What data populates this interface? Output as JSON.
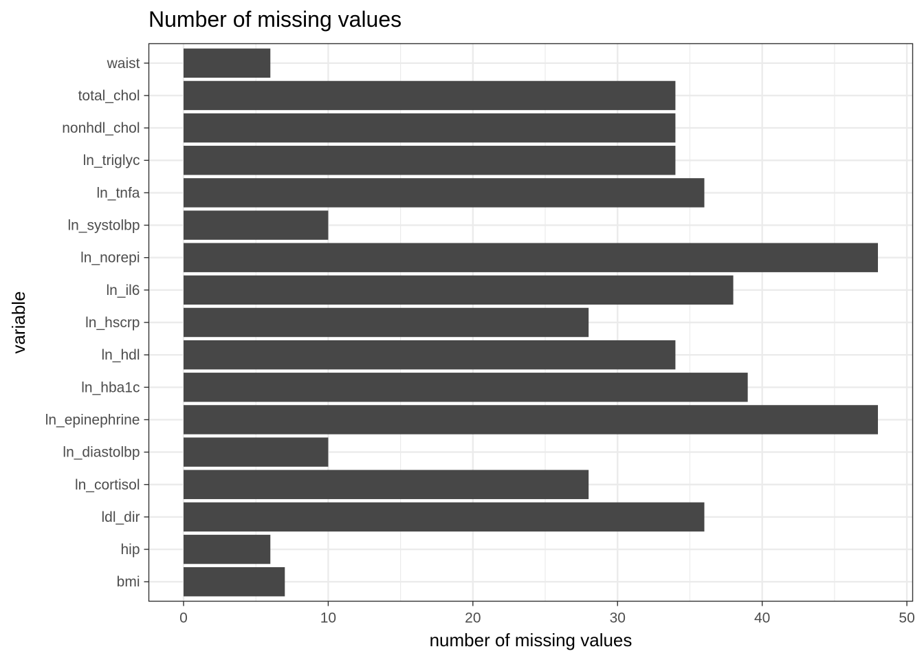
{
  "chart_data": {
    "type": "bar",
    "orientation": "horizontal",
    "title": "Number of missing values",
    "xlabel": "number of missing values",
    "ylabel": "variable",
    "categories": [
      "waist",
      "total_chol",
      "nonhdl_chol",
      "ln_triglyc",
      "ln_tnfa",
      "ln_systolbp",
      "ln_norepi",
      "ln_il6",
      "ln_hscrp",
      "ln_hdl",
      "ln_hba1c",
      "ln_epinephrine",
      "ln_diastolbp",
      "ln_cortisol",
      "ldl_dir",
      "hip",
      "bmi"
    ],
    "values": [
      6,
      34,
      34,
      34,
      36,
      10,
      48,
      38,
      28,
      34,
      39,
      48,
      10,
      28,
      36,
      6,
      7
    ],
    "xlim": [
      -2.4,
      50.4
    ],
    "xticks": [
      0,
      10,
      20,
      30,
      40,
      50
    ],
    "grid": true,
    "legend": "none",
    "bar_color": "#474747",
    "grid_color": "#ebebeb",
    "panel_border_color": "#333333"
  }
}
